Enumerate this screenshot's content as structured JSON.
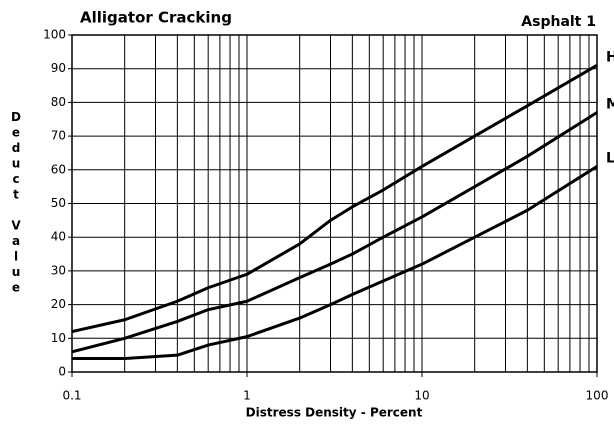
{
  "chart_data": {
    "type": "line",
    "title": "Alligator Cracking",
    "subtitle": "Asphalt 1",
    "xlabel": "Distress Density - Percent",
    "ylabel": "Deduct Value",
    "xscale": "log",
    "xlim": [
      0.1,
      100
    ],
    "xticks": [
      0.1,
      1,
      10,
      100
    ],
    "xminorticks": [
      0.2,
      0.3,
      0.4,
      0.5,
      0.6,
      0.7,
      0.8,
      0.9,
      2,
      3,
      4,
      5,
      6,
      7,
      8,
      9,
      20,
      30,
      40,
      50,
      60,
      70,
      80,
      90
    ],
    "ylim": [
      0,
      100
    ],
    "yticks": [
      0,
      10,
      20,
      30,
      40,
      50,
      60,
      70,
      80,
      90,
      100
    ],
    "grid": true,
    "x": [
      0.1,
      0.2,
      0.4,
      0.6,
      1,
      2,
      3,
      4,
      6,
      10,
      20,
      40,
      100
    ],
    "series": [
      {
        "name": "H",
        "color": "#000000",
        "values": [
          12,
          15.5,
          21,
          25,
          29,
          38,
          45,
          49,
          54,
          61,
          70,
          79,
          91
        ]
      },
      {
        "name": "M",
        "color": "#000000",
        "values": [
          6,
          10,
          15,
          18.5,
          21,
          28,
          32,
          35,
          40,
          46,
          55,
          64,
          77
        ]
      },
      {
        "name": "L",
        "color": "#000000",
        "values": [
          4,
          4,
          5,
          8,
          10.5,
          16,
          20,
          23,
          27,
          32,
          40,
          48,
          61
        ]
      }
    ]
  }
}
